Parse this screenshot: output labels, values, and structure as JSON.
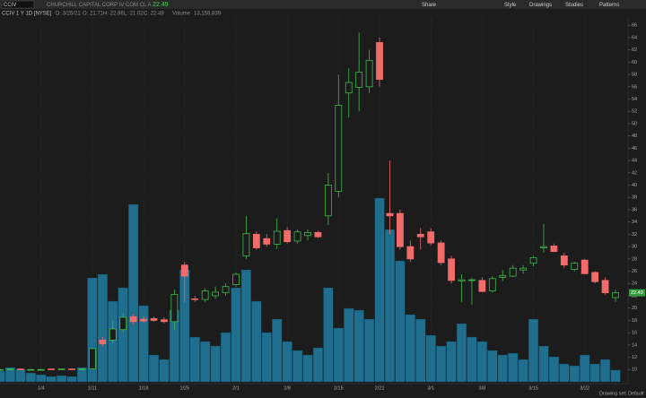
{
  "header": {
    "symbol": "CCIV",
    "company": "CHURCHILL CAPITAL CORP IV COM CL A",
    "price": "22.49",
    "buttons": [
      "Share",
      "Style",
      "Drawings",
      "Studies",
      "Patterns"
    ],
    "study": "CCIV 1 Y 1D [NYSE]",
    "date": "D: 3/25/21",
    "open": "O: 21.71",
    "high": "H: 22.96",
    "low": "L: 21.02",
    "close": "C: 22.49",
    "volume_label": "Volume",
    "volume": "13,158,839"
  },
  "footer": {
    "drawing_set": "Drawing set: Default"
  },
  "chart_data": {
    "type": "candlestick",
    "categories": [
      null,
      null,
      null,
      null,
      "1/4",
      null,
      null,
      null,
      null,
      "1/11",
      null,
      null,
      null,
      null,
      "1/18",
      null,
      null,
      null,
      "1/25",
      null,
      null,
      null,
      null,
      "2/1",
      null,
      null,
      null,
      null,
      "2/8",
      null,
      null,
      null,
      null,
      "2/15",
      null,
      null,
      null,
      "2/22",
      null,
      null,
      null,
      null,
      "3/1",
      null,
      null,
      null,
      null,
      "3/8",
      null,
      null,
      null,
      null,
      "3/15",
      null,
      null,
      null,
      null,
      "3/22",
      null,
      null,
      null
    ],
    "open": [
      10.0,
      10.0,
      10.1,
      10.0,
      10.0,
      10.1,
      10.0,
      10.1,
      10.1,
      10.1,
      14.8,
      14.8,
      16.5,
      18.6,
      18.2,
      18.3,
      18.1,
      17.8,
      27.0,
      21.5,
      21.4,
      22.0,
      22.5,
      23.8,
      28.5,
      32.0,
      31.3,
      30.4,
      32.6,
      30.9,
      31.8,
      32.3,
      35.0,
      39.0,
      55.0,
      55.9,
      56.0,
      63.2,
      35.4,
      35.4,
      30.0,
      32.0,
      32.4,
      30.6,
      28.0,
      24.4,
      24.6,
      24.5,
      22.8,
      25.0,
      25.2,
      26.2,
      27.3,
      29.8,
      30.1,
      28.5,
      26.3,
      27.8,
      25.8,
      24.5,
      21.71
    ],
    "high": [
      10.1,
      10.1,
      10.2,
      10.1,
      10.1,
      10.2,
      10.1,
      10.2,
      10.2,
      13.6,
      15.3,
      18.0,
      19.2,
      19.0,
      18.6,
      18.6,
      18.5,
      23.0,
      27.5,
      22.0,
      23.2,
      23.5,
      24.0,
      25.8,
      35.0,
      32.5,
      32.0,
      34.6,
      33.2,
      32.8,
      32.8,
      32.6,
      42.0,
      58.0,
      59.0,
      64.8,
      62.0,
      64.0,
      44.0,
      36.0,
      31.0,
      33.0,
      33.0,
      31.0,
      28.5,
      25.5,
      25.0,
      25.0,
      25.2,
      26.2,
      27.0,
      27.0,
      28.5,
      33.7,
      30.5,
      29.0,
      27.5,
      28.0,
      26.0,
      25.0,
      22.96
    ],
    "low": [
      9.9,
      9.9,
      10.0,
      9.9,
      9.9,
      10.0,
      9.9,
      10.0,
      10.0,
      10.0,
      13.8,
      14.4,
      16.0,
      17.4,
      17.6,
      17.8,
      17.5,
      16.5,
      21.0,
      21.0,
      21.0,
      21.5,
      22.0,
      23.5,
      28.0,
      29.5,
      30.0,
      29.6,
      30.5,
      30.5,
      31.0,
      31.4,
      33.5,
      38.0,
      51.0,
      52.0,
      55.0,
      56.0,
      32.0,
      29.5,
      27.5,
      29.5,
      30.2,
      27.0,
      24.0,
      21.0,
      20.5,
      22.6,
      22.5,
      24.4,
      25.0,
      25.6,
      26.8,
      29.0,
      29.1,
      26.5,
      26.0,
      25.5,
      24.0,
      22.2,
      21.02
    ],
    "close": [
      10.0,
      10.1,
      10.0,
      10.0,
      10.0,
      10.0,
      10.1,
      10.0,
      10.1,
      13.4,
      14.2,
      16.6,
      18.5,
      17.8,
      17.9,
      18.0,
      17.8,
      22.2,
      25.2,
      21.4,
      22.8,
      22.6,
      23.5,
      25.5,
      32.1,
      29.8,
      30.4,
      32.5,
      30.8,
      32.4,
      32.3,
      31.6,
      40.0,
      53.0,
      56.7,
      58.4,
      60.3,
      57.2,
      35.0,
      30.0,
      28.0,
      31.6,
      30.6,
      27.4,
      24.5,
      24.6,
      24.6,
      22.7,
      24.8,
      25.3,
      26.5,
      26.5,
      28.2,
      30.0,
      29.2,
      27.0,
      27.3,
      25.6,
      24.3,
      22.5,
      22.49
    ],
    "volume": [
      12000000,
      16000000,
      14000000,
      10000000,
      8000000,
      6000000,
      7000000,
      6000000,
      16000000,
      116000000,
      120000000,
      90000000,
      105000000,
      198000000,
      85000000,
      30000000,
      25000000,
      80000000,
      125000000,
      50000000,
      45000000,
      40000000,
      55000000,
      105000000,
      125000000,
      90000000,
      55000000,
      70000000,
      45000000,
      35000000,
      30000000,
      38000000,
      105000000,
      60000000,
      82000000,
      80000000,
      70000000,
      205000000,
      170000000,
      135000000,
      75000000,
      70000000,
      52000000,
      40000000,
      45000000,
      65000000,
      50000000,
      45000000,
      35000000,
      30000000,
      32000000,
      25000000,
      70000000,
      40000000,
      28000000,
      20000000,
      18000000,
      30000000,
      20000000,
      25000000,
      13158839
    ],
    "up_color": "#3fb84a",
    "down_color": "#f26b6b",
    "volume_color": "#1f6e8e",
    "last": 22.49,
    "ylim": [
      8,
      67.2
    ],
    "yticks": [
      10,
      12,
      14,
      16,
      18,
      20,
      22,
      24,
      26,
      28,
      30,
      32,
      34,
      36,
      38,
      40,
      42,
      44,
      46,
      48,
      50,
      52,
      54,
      56,
      58,
      60,
      62,
      64,
      66
    ],
    "grid": true
  }
}
